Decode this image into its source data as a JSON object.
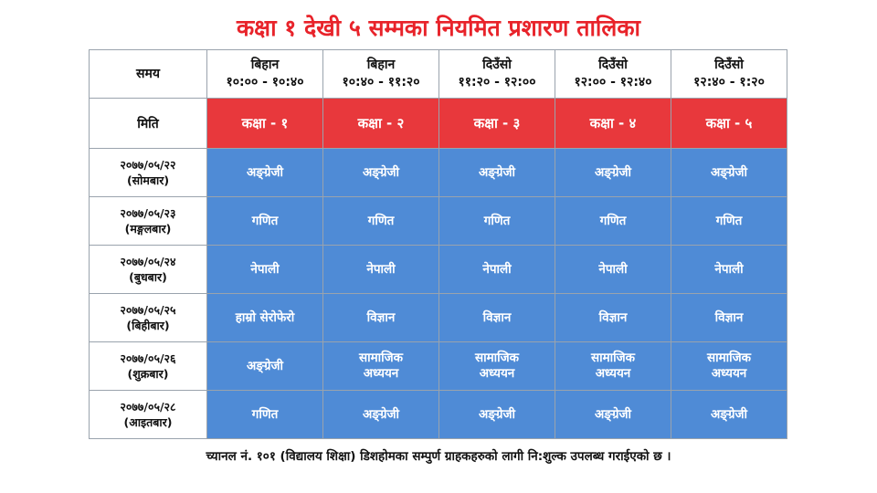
{
  "title": "कक्षा १ देखी ५ सम्मका नियमित प्रशारण तालिका",
  "colors": {
    "title": "#e8232a",
    "class_header": "#e8383c",
    "subject_cell": "#4f8bd6"
  },
  "header": {
    "time_label": "समय",
    "date_label": "मिति",
    "slots": [
      {
        "period": "बिहान",
        "time": "१०:०० - १०:४०"
      },
      {
        "period": "बिहान",
        "time": "१०:४० - ११:२०"
      },
      {
        "period": "दिउँसो",
        "time": "११:२० - १२:००"
      },
      {
        "period": "दिउँसो",
        "time": "१२:०० - १२:४०"
      },
      {
        "period": "दिउँसो",
        "time": "१२:४० - १:२०"
      }
    ],
    "classes": [
      "कक्षा - १",
      "कक्षा - २",
      "कक्षा - ३",
      "कक्षा - ४",
      "कक्षा - ५"
    ]
  },
  "rows": [
    {
      "date": "२०७७/०५/२२",
      "day": "(सोमबार)",
      "subjects": [
        [
          "अङ्ग्रेजी"
        ],
        [
          "अङ्ग्रेजी"
        ],
        [
          "अङ्ग्रेजी"
        ],
        [
          "अङ्ग्रेजी"
        ],
        [
          "अङ्ग्रेजी"
        ]
      ]
    },
    {
      "date": "२०७७/०५/२३",
      "day": "(मङ्गलबार)",
      "subjects": [
        [
          "गणित"
        ],
        [
          "गणित"
        ],
        [
          "गणित"
        ],
        [
          "गणित"
        ],
        [
          "गणित"
        ]
      ]
    },
    {
      "date": "२०७७/०५/२४",
      "day": "(बुधबार)",
      "subjects": [
        [
          "नेपाली"
        ],
        [
          "नेपाली"
        ],
        [
          "नेपाली"
        ],
        [
          "नेपाली"
        ],
        [
          "नेपाली"
        ]
      ]
    },
    {
      "date": "२०७७/०५/२५",
      "day": "(बिहीबार)",
      "subjects": [
        [
          "हाम्रो सेरोफेरो"
        ],
        [
          "विज्ञान"
        ],
        [
          "विज्ञान"
        ],
        [
          "विज्ञान"
        ],
        [
          "विज्ञान"
        ]
      ]
    },
    {
      "date": "२०७७/०५/२६",
      "day": "(शुक्रबार)",
      "subjects": [
        [
          "अङ्ग्रेजी"
        ],
        [
          "सामाजिक",
          "अध्ययन"
        ],
        [
          "सामाजिक",
          "अध्ययन"
        ],
        [
          "सामाजिक",
          "अध्ययन"
        ],
        [
          "सामाजिक",
          "अध्ययन"
        ]
      ]
    },
    {
      "date": "२०७७/०५/२८",
      "day": "(आइतबार)",
      "subjects": [
        [
          "गणित"
        ],
        [
          "अङ्ग्रेजी"
        ],
        [
          "अङ्ग्रेजी"
        ],
        [
          "अङ्ग्रेजी"
        ],
        [
          "अङ्ग्रेजी"
        ]
      ]
    }
  ],
  "footer": "च्यानल नं. १०१ (विद्यालय शिक्षा) डिशहोमका सम्पुर्ण ग्राहकहरुको लागी नि:शुल्क उपलब्ध गराईएको छ ।"
}
